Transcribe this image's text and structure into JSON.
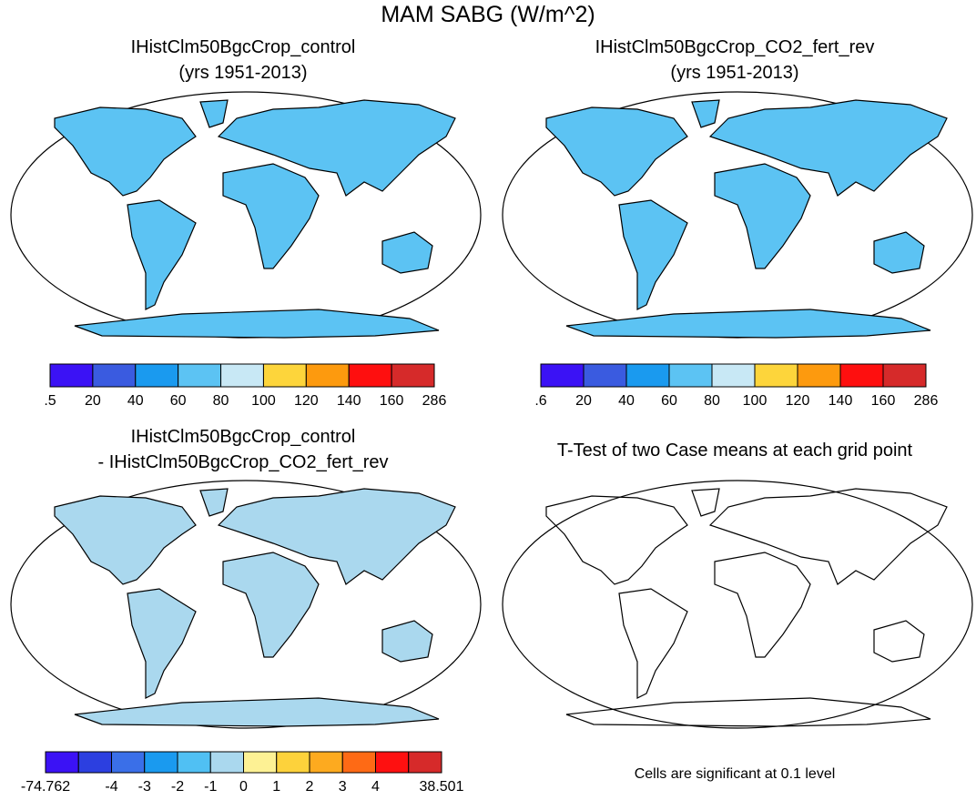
{
  "title": "MAM SABG (W/m^2)",
  "panels": [
    {
      "title": [
        "IHistClm50BgcCrop_control",
        "(yrs 1951-2013)"
      ],
      "colorbar": {
        "colors": [
          "#3b12f5",
          "#3a5be0",
          "#1a9aef",
          "#5cc3f3",
          "#c8e8f5",
          "#fdd53b",
          "#fd9a0e",
          "#fe0f0f",
          "#d62a2a"
        ],
        "labels": [
          ".5",
          "20",
          "40",
          "60",
          "80",
          "100",
          "120",
          "140",
          "160",
          "286"
        ]
      }
    },
    {
      "title": [
        "IHistClm50BgcCrop_CO2_fert_rev",
        "(yrs 1951-2013)"
      ],
      "colorbar": {
        "colors": [
          "#3b12f5",
          "#3a5be0",
          "#1a9aef",
          "#5cc3f3",
          "#c8e8f5",
          "#fdd53b",
          "#fd9a0e",
          "#fe0f0f",
          "#d62a2a"
        ],
        "labels": [
          ".6",
          "20",
          "40",
          "60",
          "80",
          "100",
          "120",
          "140",
          "160",
          "286"
        ]
      }
    },
    {
      "title": [
        "IHistClm50BgcCrop_control",
        "- IHistClm50BgcCrop_CO2_fert_rev"
      ],
      "colorbar": {
        "colors": [
          "#3b12f5",
          "#2c3fe0",
          "#3a6fe8",
          "#1a9aef",
          "#50c0f3",
          "#aad8ee",
          "#fdf194",
          "#fdd23b",
          "#fdaa1f",
          "#fe6a15",
          "#fe1010",
          "#d62a2a"
        ],
        "labels": [
          "-74.762",
          null,
          "-4",
          "-3",
          "-2",
          "-1",
          "0",
          "1",
          "2",
          "3",
          "4",
          null,
          "38.501"
        ]
      }
    },
    {
      "title": [
        "T-Test of two Case means at each grid point"
      ],
      "note": "Cells are significant at 0.1 level"
    }
  ]
}
